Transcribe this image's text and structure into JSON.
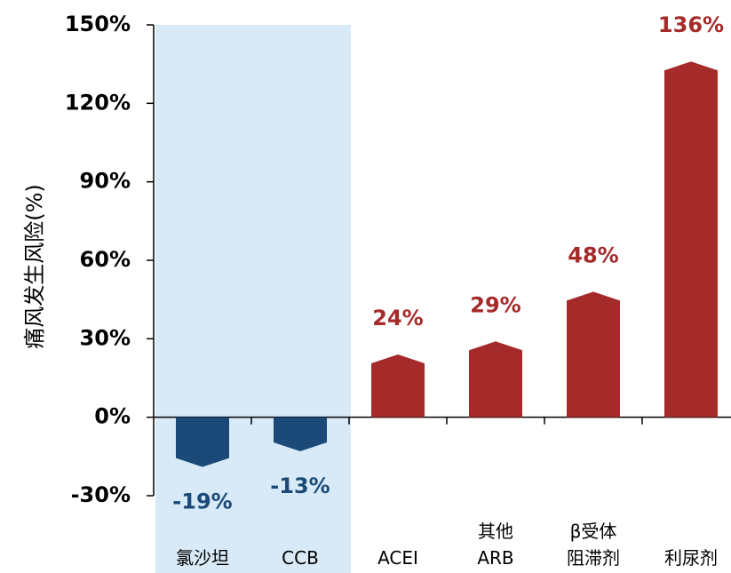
{
  "chart_data": {
    "type": "bar",
    "y_axis_label": "痛风发生风险(%)",
    "categories": [
      "氯沙坦",
      "CCB",
      "ACEI",
      "其他\nARB",
      "β受体\n阻滞剂",
      "利尿剂"
    ],
    "values": [
      -19,
      -13,
      24,
      29,
      48,
      136
    ],
    "value_labels": [
      "-19%",
      "-13%",
      "24%",
      "29%",
      "48%",
      "136%"
    ],
    "colors": [
      "#1b4a78",
      "#1b4a78",
      "#a52a2a",
      "#a52a2a",
      "#a52a2a",
      "#a52a2a"
    ],
    "ylim": [
      -30,
      150
    ],
    "yticks": [
      {
        "value": -30,
        "label": "-30%"
      },
      {
        "value": 0,
        "label": "0%"
      },
      {
        "value": 30,
        "label": "30%"
      },
      {
        "value": 60,
        "label": "60%"
      },
      {
        "value": 90,
        "label": "90%"
      },
      {
        "value": 120,
        "label": "120%"
      },
      {
        "value": 150,
        "label": "150%"
      }
    ],
    "shaded_categories": [
      0,
      1
    ],
    "shade_color": "#d8eaf7"
  }
}
